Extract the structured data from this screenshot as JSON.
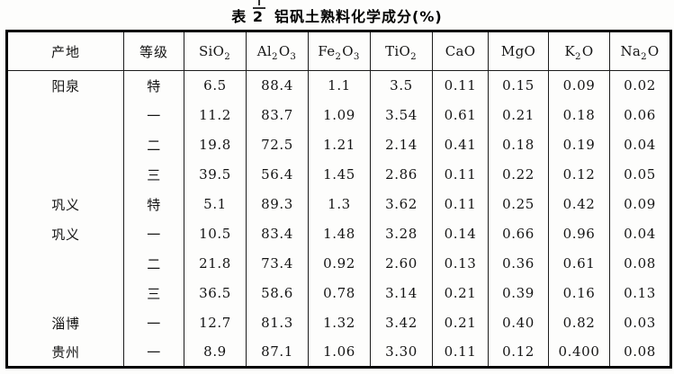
{
  "title": {
    "label": "表 2",
    "text": "铝矾土熟料化学成分(%)"
  },
  "table": {
    "columns": [
      "产地",
      "等级",
      "SiO₂",
      "Al₂O₃",
      "Fe₂O₃",
      "TiO₂",
      "CaO",
      "MgO",
      "K₂O",
      "Na₂O"
    ],
    "rows": [
      {
        "origin": "阳泉",
        "grade": "特",
        "values": [
          "6.5",
          "88.4",
          "1.1",
          "3.5",
          "0.11",
          "0.15",
          "0.09",
          "0.02"
        ]
      },
      {
        "origin": "",
        "grade": "一",
        "values": [
          "11.2",
          "83.7",
          "1.09",
          "3.54",
          "0.61",
          "0.21",
          "0.18",
          "0.06"
        ]
      },
      {
        "origin": "",
        "grade": "二",
        "values": [
          "19.8",
          "72.5",
          "1.21",
          "2.14",
          "0.41",
          "0.18",
          "0.19",
          "0.04"
        ]
      },
      {
        "origin": "",
        "grade": "三",
        "values": [
          "39.5",
          "56.4",
          "1.45",
          "2.86",
          "0.11",
          "0.22",
          "0.12",
          "0.05"
        ]
      },
      {
        "origin": "巩义",
        "grade": "特",
        "values": [
          "5.1",
          "89.3",
          "1.3",
          "3.62",
          "0.11",
          "0.25",
          "0.42",
          "0.09"
        ]
      },
      {
        "origin": "巩义",
        "grade": "一",
        "values": [
          "10.5",
          "83.4",
          "1.48",
          "3.28",
          "0.14",
          "0.66",
          "0.96",
          "0.04"
        ]
      },
      {
        "origin": "",
        "grade": "二",
        "values": [
          "21.8",
          "73.4",
          "0.92",
          "2.60",
          "0.13",
          "0.36",
          "0.61",
          "0.08"
        ]
      },
      {
        "origin": "",
        "grade": "三",
        "values": [
          "36.5",
          "58.6",
          "0.78",
          "3.14",
          "0.21",
          "0.39",
          "0.16",
          "0.13"
        ]
      },
      {
        "origin": "淄博",
        "grade": "一",
        "values": [
          "12.7",
          "81.3",
          "1.32",
          "3.42",
          "0.21",
          "0.40",
          "0.82",
          "0.03"
        ]
      },
      {
        "origin": "贵州",
        "grade": "一",
        "values": [
          "8.9",
          "87.1",
          "1.06",
          "3.30",
          "0.11",
          "0.12",
          "0.400",
          "0.08"
        ]
      }
    ]
  }
}
